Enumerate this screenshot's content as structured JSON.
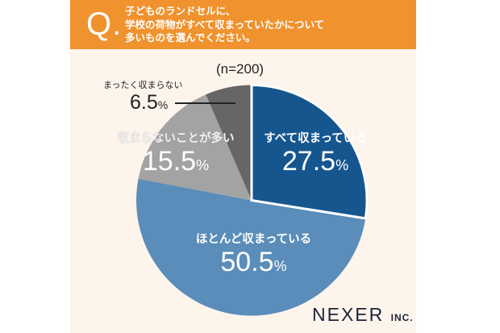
{
  "question": {
    "mark": "Q.",
    "lines": [
      "子どものランドセルに、",
      "学校の荷物がすべて収まっていたかについて",
      "多いものを選んでください。"
    ]
  },
  "sample_size": "(n=200)",
  "brand": {
    "name": "NEXER",
    "suffix": "INC."
  },
  "colors": {
    "header": "#f0922e",
    "panel_bg": "#fdf4ec",
    "slice_all": "#16568f",
    "slice_mostly": "#5a8db9",
    "slice_often_not": "#a3a3a3",
    "slice_never": "#666666"
  },
  "labels": {
    "all": {
      "category": "すべて収まっている",
      "value": "27.5",
      "unit": "%"
    },
    "mostly": {
      "category": "ほとんど収まっている",
      "value": "50.5",
      "unit": "%"
    },
    "often_not": {
      "category": "収まらないことが多い",
      "value": "15.5",
      "unit": "%"
    },
    "never": {
      "category": "まったく収まらない",
      "value": "6.5",
      "unit": "%"
    }
  },
  "chart_data": {
    "type": "pie",
    "title": "子どものランドセルに、学校の荷物がすべて収まっていたかについて多いものを選んでください。",
    "subtitle": "(n=200)",
    "categories": [
      "すべて収まっている",
      "ほとんど収まっている",
      "収まらないことが多い",
      "まったく収まらない"
    ],
    "values": [
      27.5,
      50.5,
      15.5,
      6.5
    ],
    "unit": "%",
    "colors": [
      "#16568f",
      "#5a8db9",
      "#a3a3a3",
      "#666666"
    ],
    "start_angle": "12 o'clock",
    "direction": "clockwise",
    "legend": "none (direct labels)"
  }
}
